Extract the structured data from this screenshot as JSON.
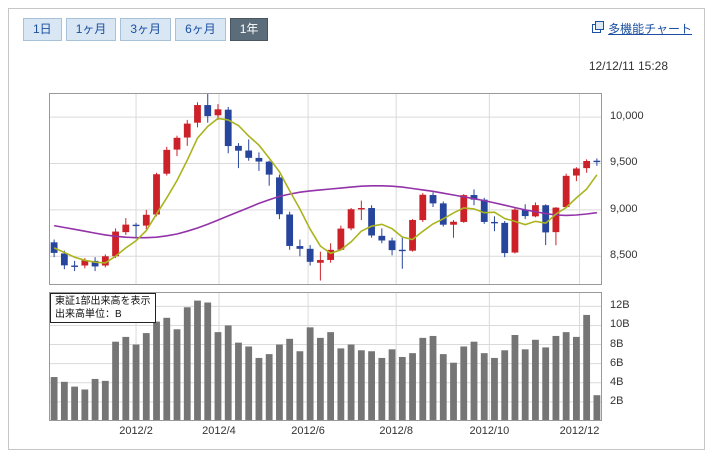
{
  "header": {
    "tabs": [
      {
        "id": "1day",
        "label": "1日",
        "active": false
      },
      {
        "id": "1month",
        "label": "1ヶ月",
        "active": false
      },
      {
        "id": "3months",
        "label": "3ヶ月",
        "active": false
      },
      {
        "id": "6months",
        "label": "6ヶ月",
        "active": false
      },
      {
        "id": "1year",
        "label": "1年",
        "active": true
      }
    ],
    "multi_chart_link": "多機能チャート",
    "timestamp": "12/12/11 15:28"
  },
  "chart_data": {
    "type": "candlestick",
    "period": "1 year, weekly candles",
    "price_panel": {
      "ylim": [
        8190,
        10260
      ],
      "yticks": [
        8500,
        9000,
        9500,
        10000
      ],
      "ytick_labels": [
        "8,500",
        "9,000",
        "9,500",
        "10,000"
      ],
      "candles_ohlc": [
        [
          8650,
          8680,
          8490,
          8536
        ],
        [
          8530,
          8560,
          8360,
          8402
        ],
        [
          8400,
          8450,
          8340,
          8395
        ],
        [
          8400,
          8480,
          8370,
          8455
        ],
        [
          8450,
          8490,
          8340,
          8390
        ],
        [
          8400,
          8520,
          8380,
          8500
        ],
        [
          8500,
          8800,
          8480,
          8766
        ],
        [
          8760,
          8911,
          8730,
          8841
        ],
        [
          8840,
          8860,
          8700,
          8831
        ],
        [
          8830,
          9000,
          8790,
          8947
        ],
        [
          8950,
          9400,
          8930,
          9384
        ],
        [
          9390,
          9680,
          9370,
          9647
        ],
        [
          9650,
          9800,
          9580,
          9777
        ],
        [
          9780,
          9970,
          9690,
          9930
        ],
        [
          9940,
          10160,
          9890,
          10130
        ],
        [
          10130,
          10255,
          9940,
          10011
        ],
        [
          10020,
          10140,
          9970,
          10084
        ],
        [
          10080,
          10110,
          9610,
          9688
        ],
        [
          9690,
          9720,
          9450,
          9638
        ],
        [
          9640,
          9760,
          9530,
          9561
        ],
        [
          9560,
          9620,
          9420,
          9521
        ],
        [
          9520,
          9530,
          9260,
          9380
        ],
        [
          9350,
          9380,
          8900,
          8953
        ],
        [
          8950,
          8980,
          8570,
          8611
        ],
        [
          8610,
          8680,
          8500,
          8580
        ],
        [
          8580,
          8620,
          8400,
          8440
        ],
        [
          8430,
          8550,
          8238,
          8459
        ],
        [
          8460,
          8640,
          8430,
          8569
        ],
        [
          8570,
          8830,
          8560,
          8798
        ],
        [
          8800,
          9020,
          8780,
          9007
        ],
        [
          9010,
          9100,
          8890,
          9020
        ],
        [
          9020,
          9050,
          8700,
          8724
        ],
        [
          8720,
          8800,
          8640,
          8670
        ],
        [
          8670,
          8700,
          8510,
          8566
        ],
        [
          8570,
          8700,
          8365,
          8555
        ],
        [
          8560,
          8900,
          8550,
          8891
        ],
        [
          8890,
          9180,
          8870,
          9163
        ],
        [
          9160,
          9190,
          9030,
          9070
        ],
        [
          9070,
          9090,
          8820,
          8840
        ],
        [
          8840,
          8890,
          8700,
          8872
        ],
        [
          8870,
          9170,
          8860,
          9159
        ],
        [
          9160,
          9220,
          9050,
          9110
        ],
        [
          9110,
          9130,
          8850,
          8870
        ],
        [
          8870,
          8930,
          8770,
          8863
        ],
        [
          8860,
          8880,
          8490,
          8534
        ],
        [
          8540,
          9030,
          8530,
          9003
        ],
        [
          9000,
          9060,
          8900,
          8933
        ],
        [
          8930,
          9080,
          8920,
          9051
        ],
        [
          9050,
          9060,
          8620,
          8757
        ],
        [
          8760,
          9030,
          8619,
          9024
        ],
        [
          9030,
          9390,
          9020,
          9367
        ],
        [
          9370,
          9460,
          9310,
          9446
        ],
        [
          9450,
          9545,
          9400,
          9527
        ],
        [
          9530,
          9555,
          9475,
          9525
        ]
      ],
      "ma_short": [
        8590,
        8540,
        8490,
        8456,
        8436,
        8428,
        8501,
        8590,
        8666,
        8777,
        8954,
        9130,
        9317,
        9537,
        9774,
        9899,
        9986,
        9969,
        9910,
        9796,
        9698,
        9558,
        9411,
        9205,
        9009,
        8793,
        8609,
        8532,
        8569,
        8655,
        8771,
        8824,
        8844,
        8797,
        8707,
        8681,
        8769,
        8849,
        8904,
        8967,
        9021,
        9010,
        8970,
        8975,
        8907,
        8876,
        8841,
        8877,
        8856,
        8954,
        9026,
        9129,
        9224,
        9378
      ],
      "ma_long": [
        8830,
        8810,
        8790,
        8770,
        8750,
        8730,
        8715,
        8705,
        8700,
        8700,
        8705,
        8720,
        8740,
        8770,
        8805,
        8845,
        8890,
        8935,
        8980,
        9025,
        9070,
        9110,
        9145,
        9170,
        9190,
        9205,
        9215,
        9225,
        9235,
        9245,
        9255,
        9260,
        9260,
        9255,
        9245,
        9230,
        9215,
        9200,
        9180,
        9160,
        9140,
        9120,
        9100,
        9075,
        9050,
        9025,
        9000,
        8980,
        8960,
        8945,
        8940,
        8945,
        8955,
        8970
      ]
    },
    "volume_panel": {
      "ylim": [
        0,
        13.5
      ],
      "yticks": [
        2,
        4,
        6,
        8,
        10,
        12
      ],
      "ytick_labels": [
        "2B",
        "4B",
        "6B",
        "8B",
        "10B",
        "12B"
      ],
      "values": [
        4.6,
        4.1,
        3.6,
        3.3,
        4.4,
        4.2,
        8.3,
        8.8,
        8.0,
        9.2,
        10.4,
        10.8,
        9.6,
        11.9,
        12.6,
        12.4,
        9.3,
        10.0,
        8.2,
        7.8,
        6.6,
        7.0,
        8.0,
        8.6,
        7.3,
        9.8,
        8.7,
        9.3,
        7.6,
        8.0,
        7.4,
        7.3,
        6.6,
        7.5,
        6.7,
        7.1,
        8.7,
        8.9,
        7.0,
        6.1,
        7.8,
        8.3,
        7.1,
        6.6,
        7.4,
        9.0,
        7.5,
        8.5,
        7.7,
        8.9,
        9.3,
        8.8,
        11.1,
        2.7
      ],
      "note_lines": [
        "東証1部出来高を表示",
        "出来高単位：B"
      ]
    },
    "x_axis": [
      {
        "label": "2012/2",
        "index": 8.5
      },
      {
        "label": "2012/4",
        "index": 16.6
      },
      {
        "label": "2012/6",
        "index": 25.3
      },
      {
        "label": "2012/8",
        "index": 33.9
      },
      {
        "label": "2012/10",
        "index": 43.0
      },
      {
        "label": "2012/12",
        "index": 51.8
      }
    ],
    "colors": {
      "up": "#cc2129",
      "down": "#27459c",
      "ma_short": "#aab41e",
      "ma_long": "#9333a8",
      "volume_bar": "#757575",
      "grid": "#dadada",
      "frame": "#999999"
    }
  }
}
